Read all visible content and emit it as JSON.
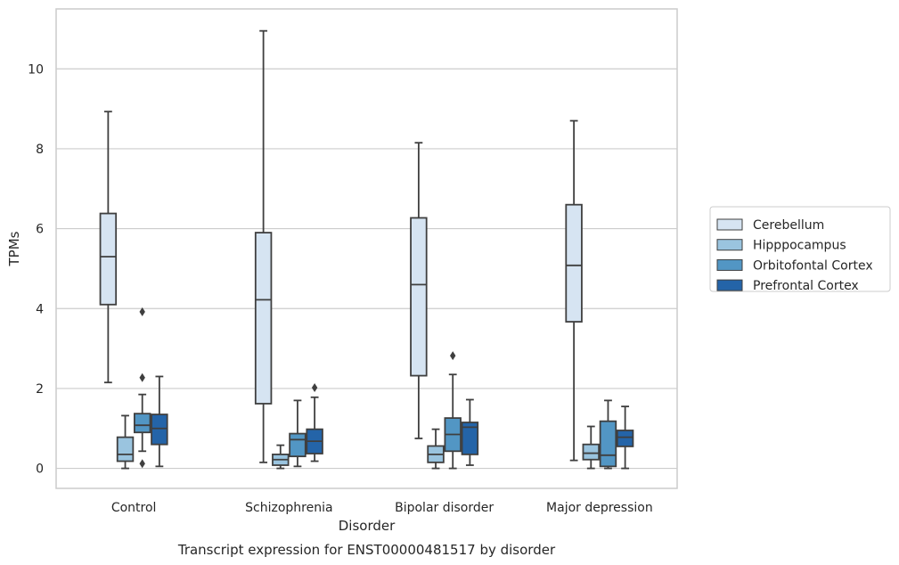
{
  "chart_data": {
    "type": "box",
    "title": "",
    "caption": "Transcript expression for ENST00000481517 by disorder",
    "xlabel": "Disorder",
    "ylabel": "TPMs",
    "ylim": [
      -0.5,
      11.5
    ],
    "y_ticks": [
      0,
      2,
      4,
      6,
      8,
      10
    ],
    "grid": "horizontal",
    "legend_position": "right",
    "categories": [
      "Control",
      "Schizophrenia",
      "Bipolar disorder",
      "Major depression"
    ],
    "series": [
      {
        "name": "Cerebellum",
        "color": "#d6e4f2",
        "boxes": [
          {
            "whislo": 2.15,
            "q1": 4.1,
            "med": 5.3,
            "q3": 6.38,
            "whishi": 8.93,
            "fliers": []
          },
          {
            "whislo": 0.15,
            "q1": 1.62,
            "med": 4.22,
            "q3": 5.9,
            "whishi": 10.95,
            "fliers": []
          },
          {
            "whislo": 0.75,
            "q1": 2.32,
            "med": 4.6,
            "q3": 6.27,
            "whishi": 8.15,
            "fliers": []
          },
          {
            "whislo": 0.2,
            "q1": 3.67,
            "med": 5.08,
            "q3": 6.6,
            "whishi": 8.7,
            "fliers": []
          }
        ]
      },
      {
        "name": "Hipppocampus",
        "color": "#9ac4df",
        "boxes": [
          {
            "whislo": 0.0,
            "q1": 0.18,
            "med": 0.35,
            "q3": 0.78,
            "whishi": 1.32,
            "fliers": []
          },
          {
            "whislo": 0.0,
            "q1": 0.08,
            "med": 0.22,
            "q3": 0.35,
            "whishi": 0.58,
            "fliers": []
          },
          {
            "whislo": 0.0,
            "q1": 0.15,
            "med": 0.35,
            "q3": 0.56,
            "whishi": 0.98,
            "fliers": []
          },
          {
            "whislo": 0.0,
            "q1": 0.22,
            "med": 0.38,
            "q3": 0.6,
            "whishi": 1.05,
            "fliers": []
          }
        ]
      },
      {
        "name": "Orbitofontal Cortex",
        "color": "#5296c4",
        "boxes": [
          {
            "whislo": 0.43,
            "q1": 0.9,
            "med": 1.08,
            "q3": 1.37,
            "whishi": 1.85,
            "fliers": [
              3.92,
              2.27,
              0.12
            ]
          },
          {
            "whislo": 0.05,
            "q1": 0.3,
            "med": 0.72,
            "q3": 0.87,
            "whishi": 1.7,
            "fliers": []
          },
          {
            "whislo": 0.0,
            "q1": 0.43,
            "med": 0.85,
            "q3": 1.26,
            "whishi": 2.35,
            "fliers": [
              2.82
            ]
          },
          {
            "whislo": 0.0,
            "q1": 0.05,
            "med": 0.33,
            "q3": 1.18,
            "whishi": 1.7,
            "fliers": []
          }
        ]
      },
      {
        "name": "Prefrontal Cortex",
        "color": "#2464a8",
        "boxes": [
          {
            "whislo": 0.05,
            "q1": 0.6,
            "med": 1.0,
            "q3": 1.35,
            "whishi": 2.3,
            "fliers": []
          },
          {
            "whislo": 0.18,
            "q1": 0.37,
            "med": 0.68,
            "q3": 0.98,
            "whishi": 1.78,
            "fliers": [
              2.02
            ]
          },
          {
            "whislo": 0.08,
            "q1": 0.35,
            "med": 1.03,
            "q3": 1.15,
            "whishi": 1.72,
            "fliers": []
          },
          {
            "whislo": 0.0,
            "q1": 0.55,
            "med": 0.78,
            "q3": 0.95,
            "whishi": 1.55,
            "fliers": []
          }
        ]
      }
    ]
  }
}
